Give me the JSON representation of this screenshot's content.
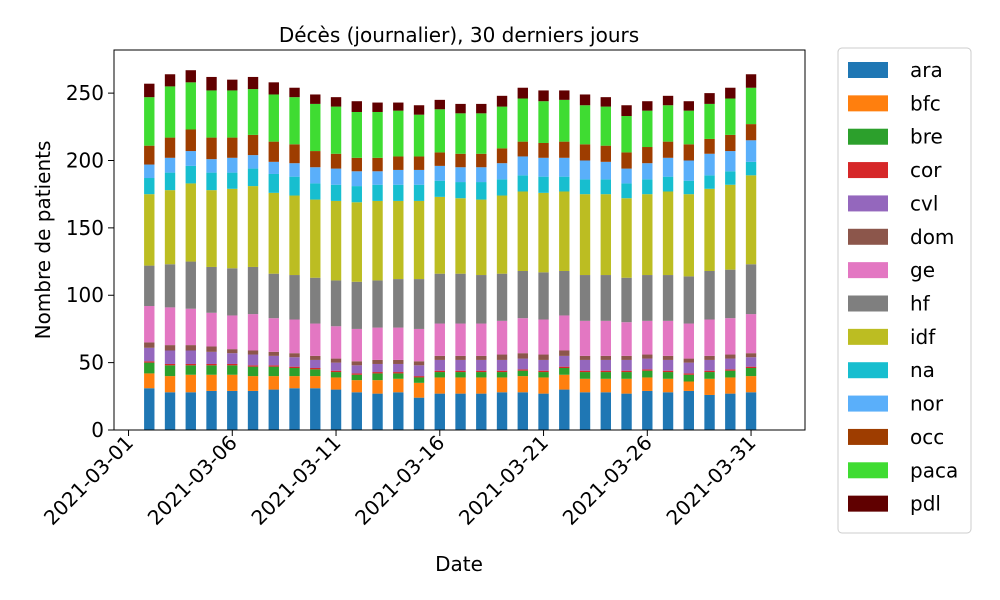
{
  "chart_data": {
    "type": "bar",
    "stacked": true,
    "title": "Décès (journalier), 30 derniers jours",
    "xlabel": "Date",
    "ylabel": "Nombre de patients",
    "ylim": [
      0,
      282
    ],
    "yticks": [
      0,
      50,
      100,
      150,
      200,
      250
    ],
    "xlim_days": [
      -0.7,
      32.6
    ],
    "xticks": [
      "2021-03-01",
      "2021-03-06",
      "2021-03-11",
      "2021-03-16",
      "2021-03-21",
      "2021-03-26",
      "2021-03-31"
    ],
    "x": [
      "2021-03-02",
      "2021-03-03",
      "2021-03-04",
      "2021-03-05",
      "2021-03-06",
      "2021-03-07",
      "2021-03-08",
      "2021-03-09",
      "2021-03-10",
      "2021-03-11",
      "2021-03-12",
      "2021-03-13",
      "2021-03-14",
      "2021-03-15",
      "2021-03-16",
      "2021-03-17",
      "2021-03-18",
      "2021-03-19",
      "2021-03-20",
      "2021-03-21",
      "2021-03-22",
      "2021-03-23",
      "2021-03-24",
      "2021-03-25",
      "2021-03-26",
      "2021-03-27",
      "2021-03-28",
      "2021-03-29",
      "2021-03-30",
      "2021-03-31"
    ],
    "legend_position": "right",
    "series": [
      {
        "name": "ara",
        "color": "#1f77b4",
        "values": [
          31,
          28,
          28,
          29,
          29,
          29,
          30,
          31,
          31,
          30,
          28,
          27,
          28,
          24,
          27,
          27,
          27,
          28,
          28,
          27,
          30,
          28,
          28,
          27,
          29,
          28,
          29,
          26,
          27,
          28
        ]
      },
      {
        "name": "bfc",
        "color": "#ff7f0e",
        "values": [
          11,
          12,
          13,
          12,
          12,
          11,
          10,
          9,
          9,
          9,
          9,
          10,
          10,
          11,
          12,
          12,
          12,
          11,
          12,
          12,
          11,
          10,
          10,
          11,
          10,
          10,
          7,
          12,
          12,
          12
        ]
      },
      {
        "name": "bre",
        "color": "#2ca02c",
        "values": [
          8,
          8,
          7,
          7,
          7,
          7,
          7,
          6,
          5,
          4,
          4,
          5,
          4,
          4,
          4,
          4,
          4,
          4,
          4,
          4,
          5,
          5,
          5,
          5,
          5,
          5,
          5,
          5,
          5,
          6
        ]
      },
      {
        "name": "cor",
        "color": "#d62728",
        "values": [
          1,
          1,
          1,
          1,
          1,
          1,
          1,
          1,
          1,
          1,
          1,
          1,
          1,
          1,
          1,
          1,
          1,
          1,
          1,
          1,
          1,
          1,
          1,
          1,
          1,
          1,
          1,
          1,
          1,
          1
        ]
      },
      {
        "name": "cvl",
        "color": "#9467bd",
        "values": [
          10,
          10,
          10,
          9,
          8,
          8,
          7,
          7,
          6,
          6,
          6,
          6,
          6,
          8,
          8,
          8,
          8,
          8,
          8,
          8,
          8,
          8,
          8,
          8,
          8,
          8,
          8,
          8,
          8,
          7
        ]
      },
      {
        "name": "dom",
        "color": "#8c564b",
        "values": [
          4,
          4,
          4,
          4,
          3,
          3,
          3,
          3,
          3,
          3,
          3,
          3,
          3,
          3,
          3,
          3,
          3,
          4,
          4,
          4,
          4,
          3,
          3,
          3,
          3,
          3,
          3,
          3,
          3,
          3
        ]
      },
      {
        "name": "ge",
        "color": "#e377c2",
        "values": [
          27,
          28,
          27,
          25,
          25,
          27,
          25,
          25,
          24,
          24,
          24,
          24,
          24,
          24,
          24,
          24,
          24,
          25,
          26,
          26,
          26,
          26,
          26,
          25,
          25,
          26,
          26,
          27,
          27,
          29
        ]
      },
      {
        "name": "hf",
        "color": "#7f7f7f",
        "values": [
          30,
          32,
          35,
          34,
          35,
          35,
          33,
          33,
          34,
          34,
          35,
          35,
          36,
          37,
          37,
          37,
          36,
          35,
          35,
          35,
          33,
          34,
          34,
          33,
          34,
          34,
          35,
          36,
          36,
          37
        ]
      },
      {
        "name": "idf",
        "color": "#bcbd22",
        "values": [
          53,
          55,
          58,
          57,
          59,
          60,
          60,
          59,
          58,
          59,
          59,
          59,
          58,
          58,
          57,
          56,
          56,
          58,
          59,
          59,
          59,
          60,
          60,
          59,
          60,
          62,
          61,
          61,
          63,
          66
        ]
      },
      {
        "name": "na",
        "color": "#17becf",
        "values": [
          12,
          13,
          13,
          13,
          12,
          13,
          14,
          14,
          12,
          12,
          12,
          12,
          12,
          12,
          12,
          12,
          13,
          12,
          12,
          12,
          11,
          11,
          11,
          11,
          11,
          11,
          10,
          10,
          10,
          10
        ]
      },
      {
        "name": "nor",
        "color": "#5aaffa",
        "values": [
          10,
          11,
          11,
          10,
          11,
          10,
          9,
          10,
          12,
          12,
          11,
          10,
          11,
          11,
          11,
          11,
          11,
          12,
          14,
          14,
          14,
          14,
          13,
          11,
          12,
          14,
          15,
          16,
          15,
          16
        ]
      },
      {
        "name": "occ",
        "color": "#9e3d00",
        "values": [
          14,
          15,
          16,
          16,
          15,
          15,
          15,
          14,
          12,
          11,
          10,
          10,
          10,
          10,
          10,
          10,
          10,
          11,
          11,
          11,
          12,
          12,
          12,
          12,
          12,
          12,
          12,
          11,
          12,
          12
        ]
      },
      {
        "name": "paca",
        "color": "#3fdc32",
        "values": [
          36,
          38,
          35,
          35,
          35,
          34,
          35,
          35,
          35,
          35,
          34,
          34,
          34,
          31,
          32,
          30,
          30,
          31,
          32,
          31,
          31,
          29,
          29,
          27,
          27,
          27,
          25,
          26,
          27,
          27
        ]
      },
      {
        "name": "pdl",
        "color": "#600000",
        "values": [
          10,
          9,
          9,
          10,
          8,
          9,
          9,
          7,
          7,
          7,
          8,
          7,
          6,
          7,
          7,
          7,
          7,
          8,
          8,
          8,
          7,
          8,
          7,
          8,
          7,
          7,
          7,
          8,
          8,
          10
        ]
      }
    ]
  }
}
